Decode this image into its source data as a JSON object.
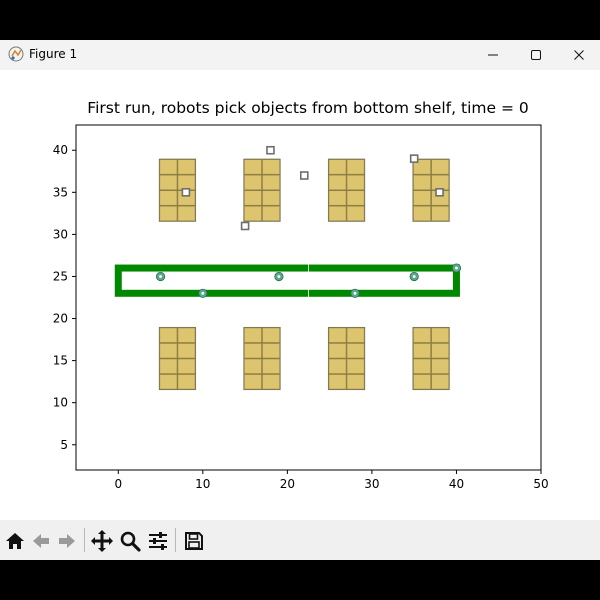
{
  "window": {
    "title": "Figure 1",
    "controls": [
      "minimize-icon",
      "maximize-icon",
      "close-icon"
    ]
  },
  "toolbar": {
    "tools": [
      "home-icon",
      "back-arrow-icon",
      "forward-arrow-icon",
      "pan-icon",
      "zoom-icon",
      "configure-subplots-icon",
      "save-icon"
    ]
  },
  "chart_data": {
    "type": "scatter",
    "title": "First run, robots pick objects from bottom shelf, time = 0",
    "xlabel": "",
    "ylabel": "",
    "xlim": [
      -5,
      50
    ],
    "ylim": [
      2,
      43
    ],
    "xticks": [
      0,
      10,
      20,
      30,
      40,
      50
    ],
    "yticks": [
      5,
      10,
      15,
      20,
      25,
      30,
      35,
      40
    ],
    "grid": false,
    "shelves": [
      {
        "x": 4.8,
        "y": 31.5,
        "w": 4.4,
        "h": 7.5
      },
      {
        "x": 14.8,
        "y": 31.5,
        "w": 4.4,
        "h": 7.5
      },
      {
        "x": 24.8,
        "y": 31.5,
        "w": 4.4,
        "h": 7.5
      },
      {
        "x": 34.8,
        "y": 31.5,
        "w": 4.4,
        "h": 7.5
      },
      {
        "x": 4.8,
        "y": 11.5,
        "w": 4.4,
        "h": 7.5
      },
      {
        "x": 14.8,
        "y": 11.5,
        "w": 4.4,
        "h": 7.5
      },
      {
        "x": 24.8,
        "y": 11.5,
        "w": 4.4,
        "h": 7.5
      },
      {
        "x": 34.8,
        "y": 11.5,
        "w": 4.4,
        "h": 7.5
      }
    ],
    "track": {
      "x0": 0,
      "x1": 40,
      "y0": 23,
      "y1": 26,
      "color": "#008800"
    },
    "objects": [
      {
        "x": 18,
        "y": 40
      },
      {
        "x": 22,
        "y": 37
      },
      {
        "x": 35,
        "y": 39
      },
      {
        "x": 8,
        "y": 35
      },
      {
        "x": 38,
        "y": 35
      },
      {
        "x": 15,
        "y": 31
      }
    ],
    "robots": [
      {
        "x": 5,
        "y": 25
      },
      {
        "x": 19,
        "y": 25
      },
      {
        "x": 35,
        "y": 25
      },
      {
        "x": 10,
        "y": 23
      },
      {
        "x": 28,
        "y": 23
      },
      {
        "x": 40,
        "y": 26
      }
    ],
    "colors": {
      "shelf": "#dcc56e",
      "shelf_frame": "#6e6e60",
      "object_edge": "#6e6e6e",
      "robot": "#5aaa8a"
    }
  }
}
